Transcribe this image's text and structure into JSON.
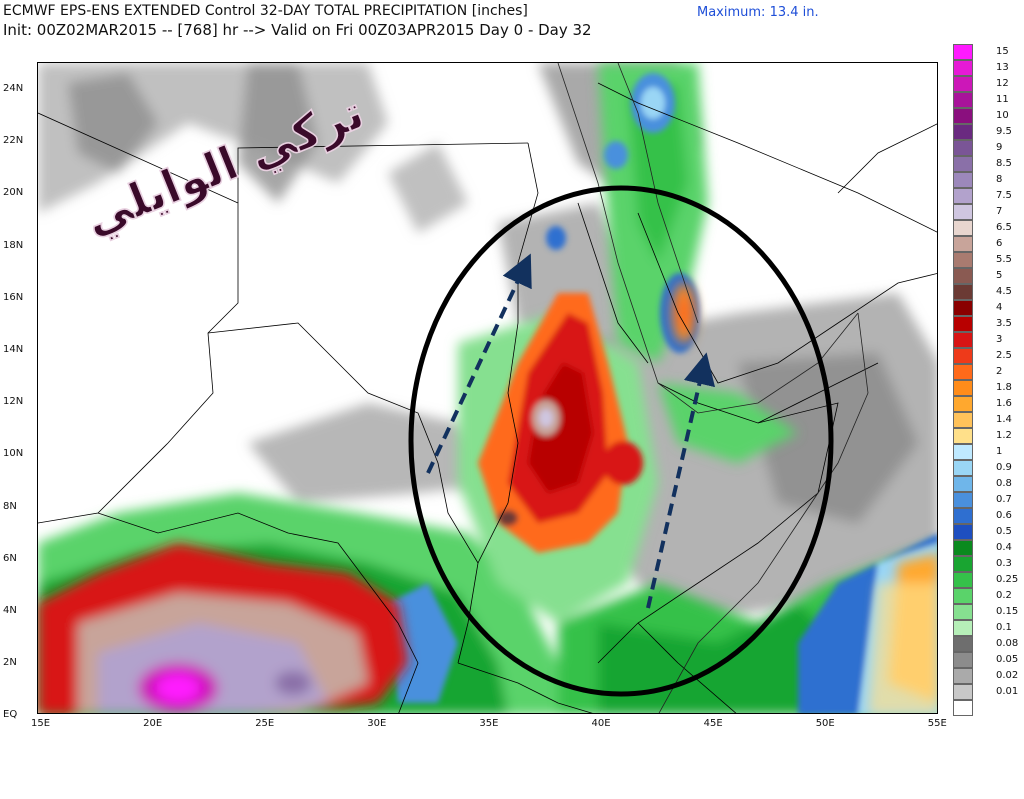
{
  "header": {
    "line1": "ECMWF EPS-ENS EXTENDED Control 32-DAY TOTAL PRECIPITATION [inches]",
    "line2": "Init: 00Z02MAR2015 -- [768] hr --> Valid on Fri 00Z03APR2015  Day 0 - Day 32",
    "maximum": "Maximum:  13.4 in."
  },
  "watermark_text": "تركي الوايلي",
  "lat_labels": [
    "24N",
    "22N",
    "20N",
    "18N",
    "16N",
    "14N",
    "12N",
    "10N",
    "8N",
    "6N",
    "4N",
    "2N",
    "EQ"
  ],
  "lon_labels": [
    "15E",
    "20E",
    "25E",
    "30E",
    "35E",
    "40E",
    "45E",
    "50E",
    "55E"
  ],
  "legend": {
    "unit": "inches",
    "levels": [
      {
        "label": "15",
        "color": "#ff1aff"
      },
      {
        "label": "13",
        "color": "#e61ad6"
      },
      {
        "label": "12",
        "color": "#cc17b8"
      },
      {
        "label": "11",
        "color": "#a8139a"
      },
      {
        "label": "10",
        "color": "#8a0f7e"
      },
      {
        "label": "9.5",
        "color": "#6a2a80"
      },
      {
        "label": "9",
        "color": "#7a5596"
      },
      {
        "label": "8.5",
        "color": "#8a70a8"
      },
      {
        "label": "8",
        "color": "#9c88bb"
      },
      {
        "label": "7.5",
        "color": "#b2a2cc"
      },
      {
        "label": "7",
        "color": "#cfc6e0"
      },
      {
        "label": "6.5",
        "color": "#e8d6cf"
      },
      {
        "label": "6",
        "color": "#c8a49a"
      },
      {
        "label": "5.5",
        "color": "#a97b70"
      },
      {
        "label": "5",
        "color": "#8a5a52"
      },
      {
        "label": "4.5",
        "color": "#6b3a34"
      },
      {
        "label": "4",
        "color": "#8a0000"
      },
      {
        "label": "3.5",
        "color": "#b80000"
      },
      {
        "label": "3",
        "color": "#d81414"
      },
      {
        "label": "2.5",
        "color": "#ee3a1a"
      },
      {
        "label": "2",
        "color": "#ff6a1a"
      },
      {
        "label": "1.8",
        "color": "#ff8c1a"
      },
      {
        "label": "1.6",
        "color": "#ffa82e"
      },
      {
        "label": "1.4",
        "color": "#ffc25a"
      },
      {
        "label": "1.2",
        "color": "#ffe08a"
      },
      {
        "label": "1",
        "color": "#bfe9ff"
      },
      {
        "label": "0.9",
        "color": "#9ad6f5"
      },
      {
        "label": "0.8",
        "color": "#6fb6ea"
      },
      {
        "label": "0.7",
        "color": "#4a90dd"
      },
      {
        "label": "0.6",
        "color": "#2f6fd0"
      },
      {
        "label": "0.5",
        "color": "#1e4fc0"
      },
      {
        "label": "0.4",
        "color": "#0a8a1e"
      },
      {
        "label": "0.3",
        "color": "#19a531"
      },
      {
        "label": "0.25",
        "color": "#35c14a"
      },
      {
        "label": "0.2",
        "color": "#5ad36a"
      },
      {
        "label": "0.15",
        "color": "#86e090"
      },
      {
        "label": "0.1",
        "color": "#b6efb8"
      },
      {
        "label": "0.08",
        "color": "#6e6e6e"
      },
      {
        "label": "0.05",
        "color": "#8c8c8c"
      },
      {
        "label": "0.02",
        "color": "#aaaaaa"
      },
      {
        "label": "0.01",
        "color": "#c8c8c8"
      },
      {
        "label": "",
        "color": "#ffffff"
      }
    ]
  },
  "colors": {
    "arrow": "#12315e",
    "ellipse": "#000000",
    "maximum_text": "#1f4fd8",
    "watermark_fill": "#3a0a2a",
    "watermark_outline": "#e8d0e0"
  }
}
